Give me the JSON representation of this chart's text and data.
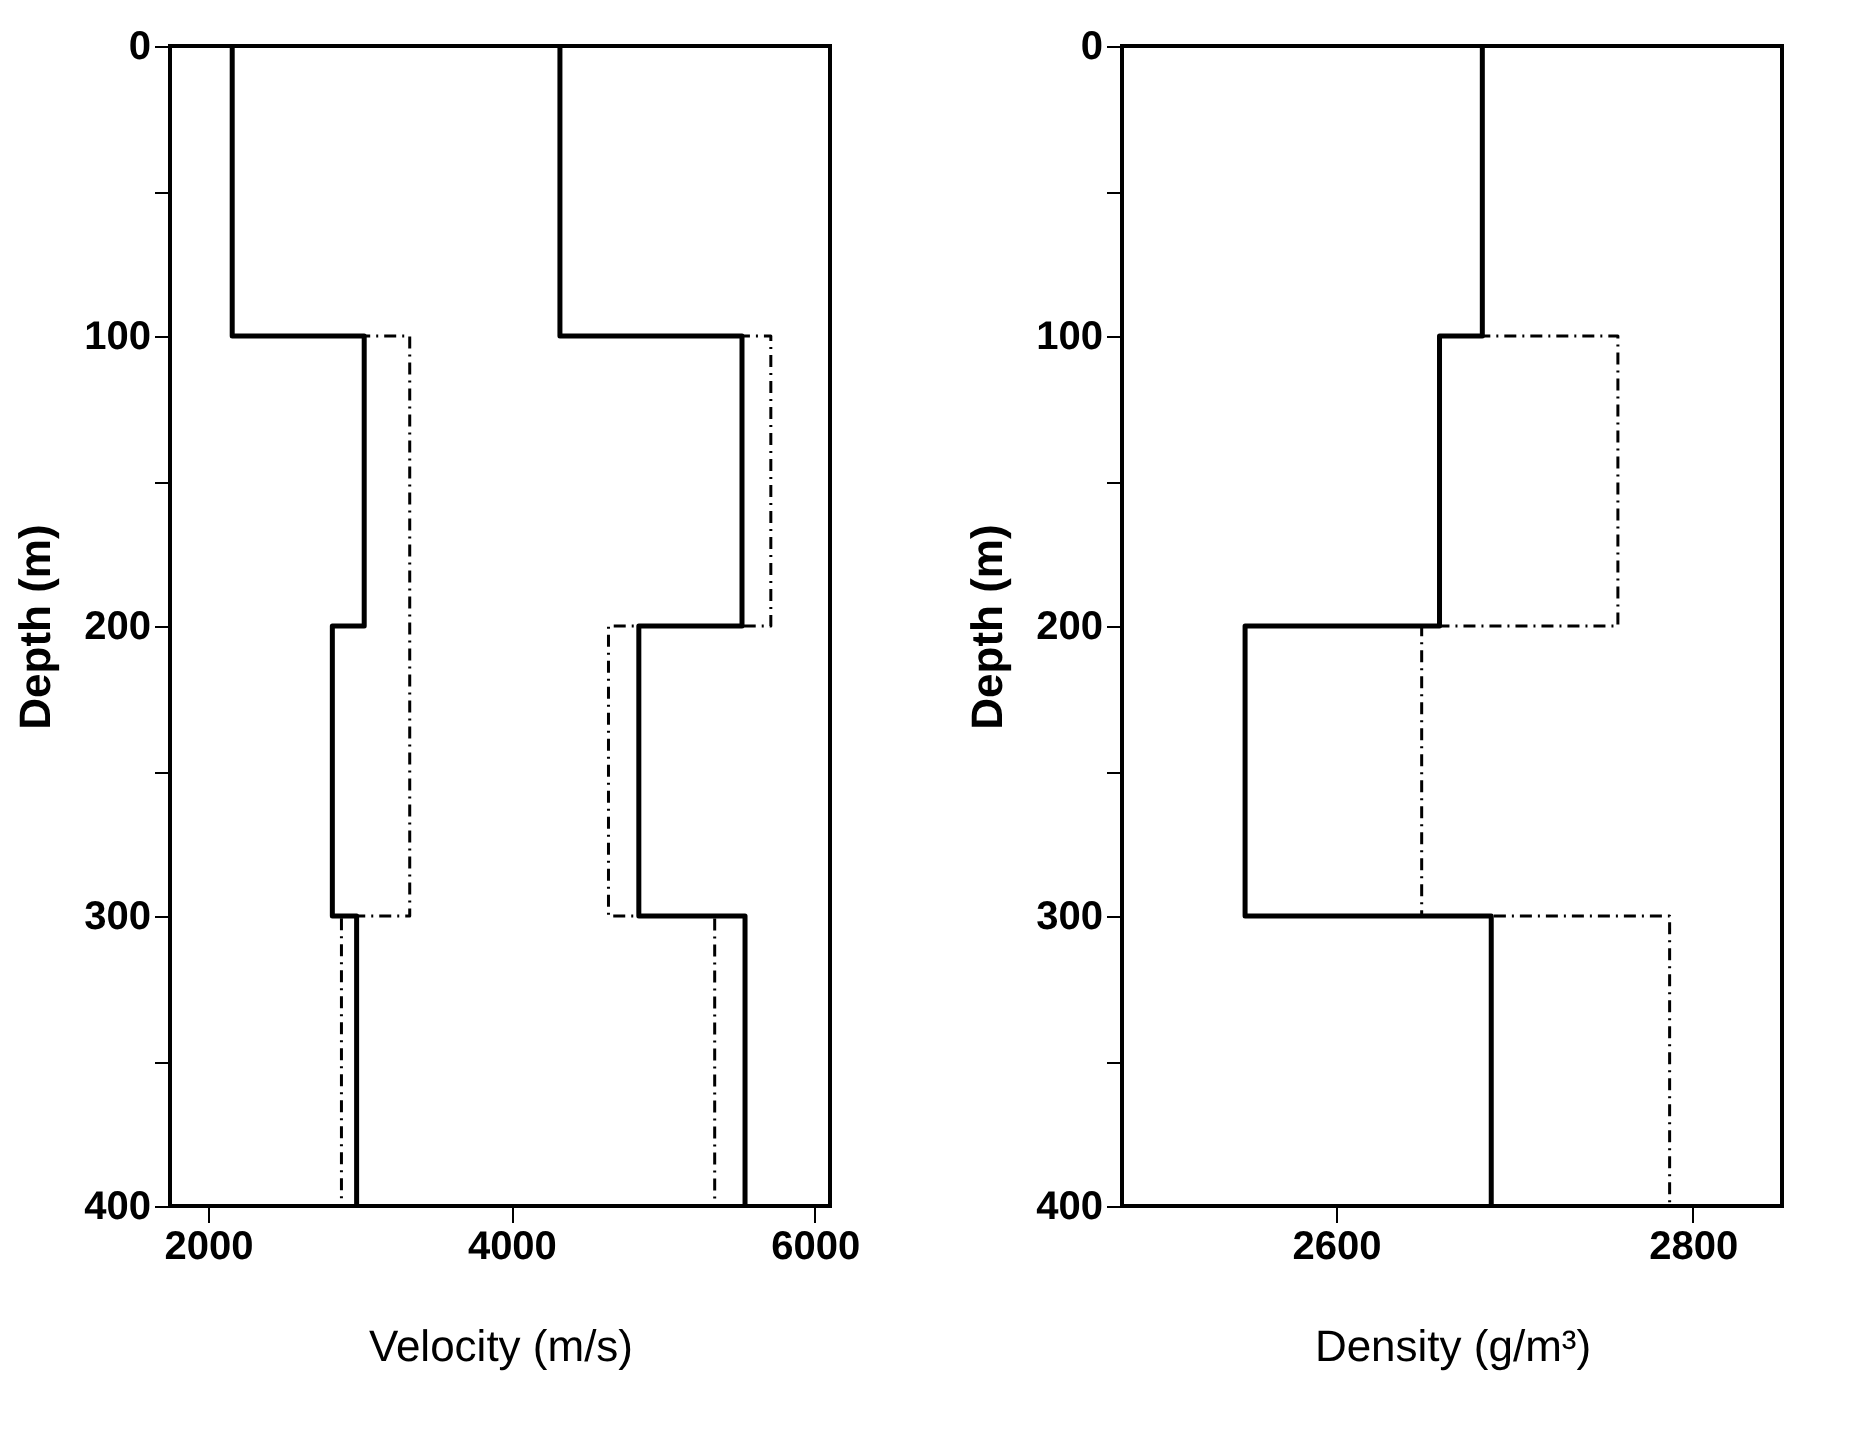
{
  "chart_data": [
    {
      "type": "line",
      "xlabel": "Velocity (m/s)",
      "ylabel": "Depth (m)",
      "xlim": [
        1750,
        6100
      ],
      "xticks": [
        2000,
        4000,
        6000
      ],
      "ylim": [
        400,
        0
      ],
      "yticks": [
        0,
        {
          "value": 50,
          "label": null
        },
        100,
        {
          "value": 150,
          "label": null
        },
        200,
        {
          "value": 250,
          "label": null
        },
        300,
        {
          "value": 350,
          "label": null
        },
        400
      ],
      "grid": false,
      "marker": "none",
      "series": [
        {
          "color": "#000000",
          "line_style": "dashed",
          "x": [
            2160,
            2160,
            3330,
            3330,
            2880,
            2880
          ],
          "values": [
            0,
            100,
            100,
            300,
            300,
            400
          ]
        },
        {
          "color": "#000000",
          "line_style": "solid",
          "x": [
            2160,
            2160,
            3030,
            3030,
            2820,
            2820,
            2980,
            2980
          ],
          "values": [
            0,
            100,
            100,
            200,
            200,
            300,
            300,
            400
          ]
        },
        {
          "color": "#000000",
          "line_style": "dashed",
          "x": [
            4320,
            4320,
            5710,
            5710,
            4640,
            4640,
            5340,
            5340
          ],
          "values": [
            0,
            100,
            100,
            200,
            200,
            300,
            300,
            400
          ]
        },
        {
          "color": "#000000",
          "line_style": "solid",
          "x": [
            4320,
            4320,
            5520,
            5520,
            4840,
            4840,
            5540,
            5540
          ],
          "values": [
            0,
            100,
            100,
            200,
            200,
            300,
            300,
            400
          ]
        }
      ]
    },
    {
      "type": "line",
      "xlabel": "Density (g/m³)",
      "ylabel": "Depth (m)",
      "xlim": [
        2480,
        2850
      ],
      "xticks": [
        2600,
        2800
      ],
      "ylim": [
        400,
        0
      ],
      "yticks": [
        0,
        {
          "value": 50,
          "label": null
        },
        100,
        {
          "value": 150,
          "label": null
        },
        200,
        {
          "value": 250,
          "label": null
        },
        300,
        {
          "value": 350,
          "label": null
        },
        400
      ],
      "grid": false,
      "marker": "none",
      "series": [
        {
          "color": "#000000",
          "line_style": "dashed",
          "x": [
            2682,
            2682,
            2758,
            2758,
            2648,
            2648,
            2787,
            2787
          ],
          "values": [
            0,
            100,
            100,
            200,
            200,
            300,
            300,
            400
          ]
        },
        {
          "color": "#000000",
          "line_style": "solid",
          "x": [
            2682,
            2682,
            2658,
            2658,
            2549,
            2549,
            2687,
            2687
          ],
          "values": [
            0,
            100,
            100,
            200,
            200,
            300,
            300,
            400
          ]
        }
      ]
    }
  ]
}
